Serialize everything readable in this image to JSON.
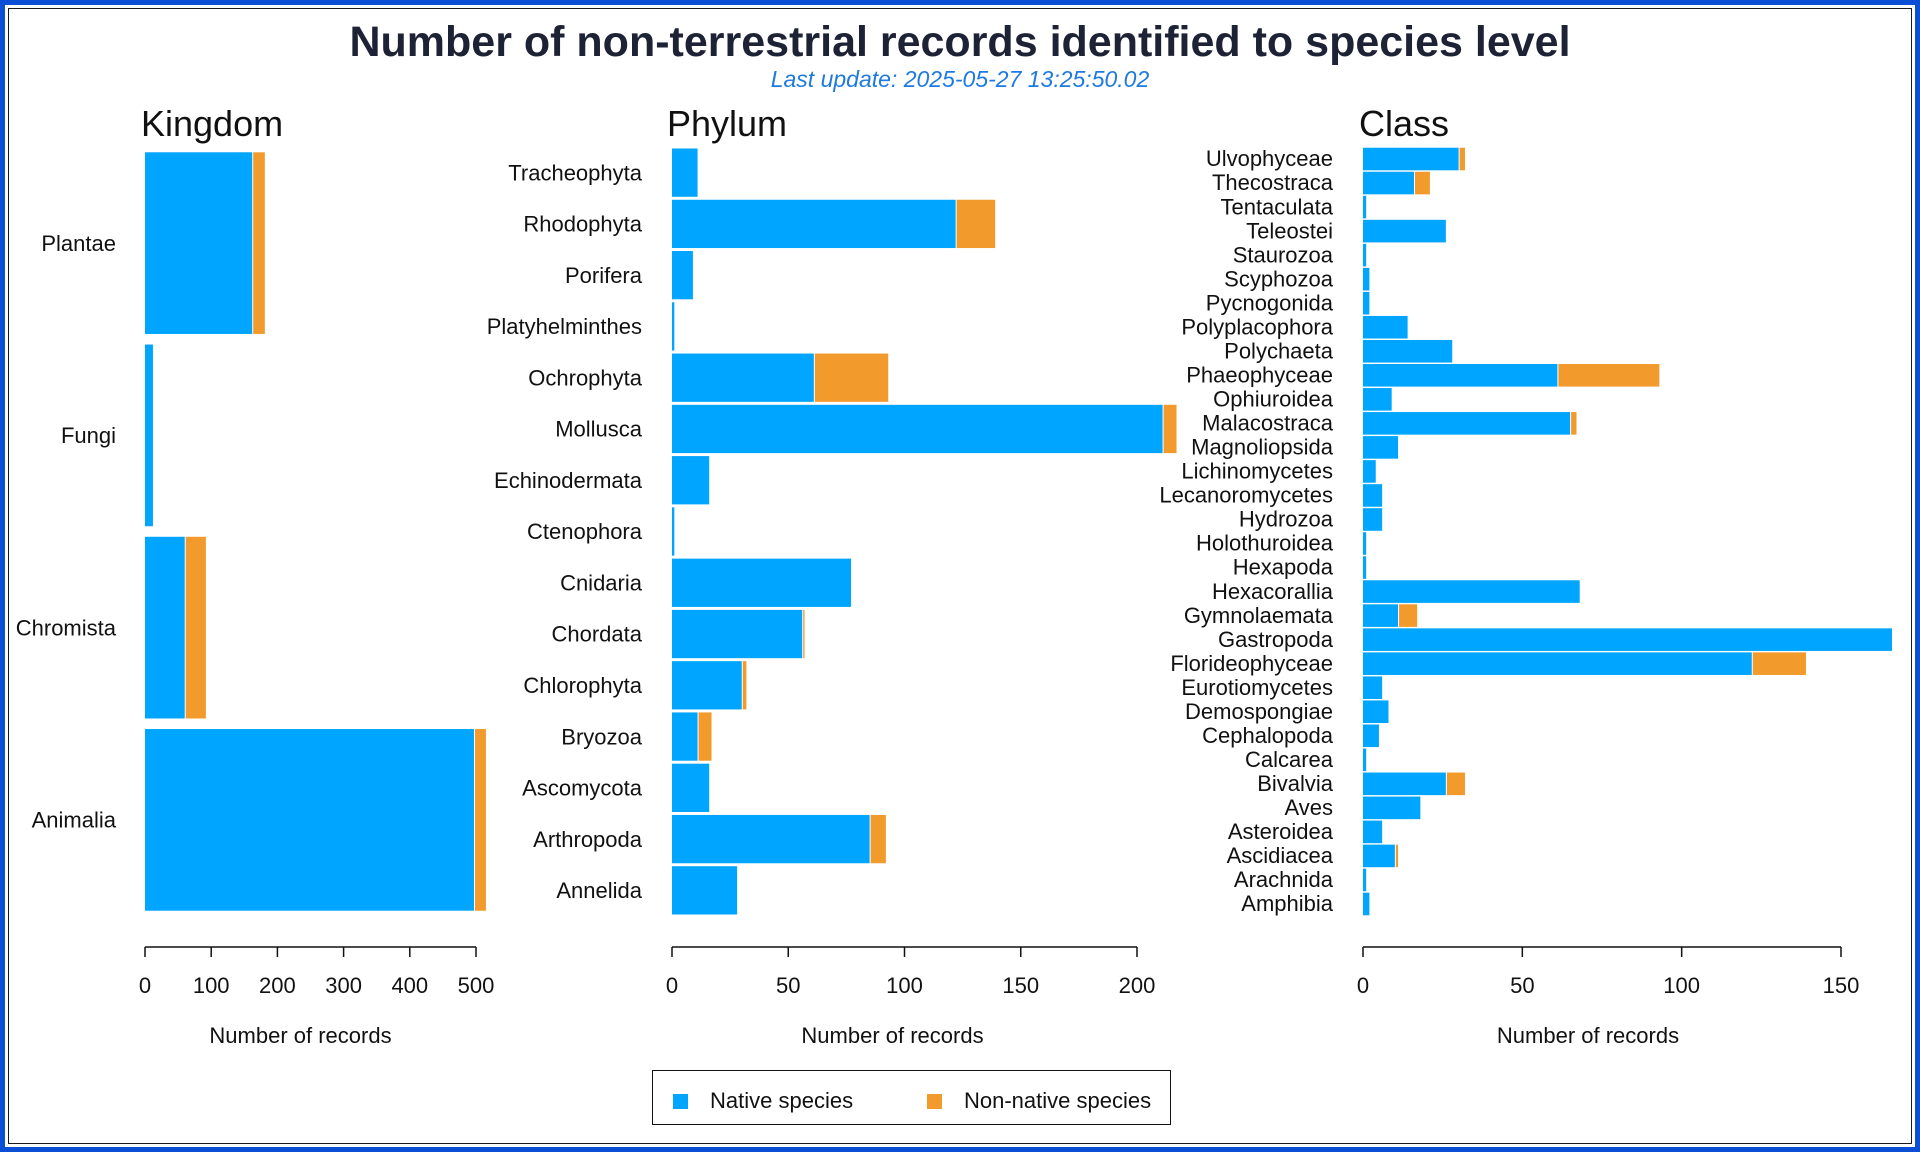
{
  "title": "Number of non-terrestrial records identified to species level",
  "subtitle": "Last update: 2025-05-27 13:25:50.02",
  "colors": {
    "native": "#00a5ff",
    "non_native": "#f39a2c",
    "frame": "#0b4fd6",
    "title": "#1d2235",
    "subtitle": "#1f7ae0"
  },
  "legend": {
    "native_label": "Native species",
    "non_native_label": "Non-native species"
  },
  "chart_data": [
    {
      "type": "bar",
      "orientation": "horizontal",
      "stacked": true,
      "title": "Kingdom",
      "xlabel": "Number of records",
      "xlim": [
        0,
        500
      ],
      "xticks": [
        0,
        100,
        200,
        300,
        400,
        500
      ],
      "categories": [
        "Plantae",
        "Fungi",
        "Chromista",
        "Animalia"
      ],
      "series": [
        {
          "name": "Native species",
          "values": [
            162,
            12,
            60,
            497
          ]
        },
        {
          "name": "Non-native species",
          "values": [
            19,
            0,
            32,
            18
          ]
        }
      ]
    },
    {
      "type": "bar",
      "orientation": "horizontal",
      "stacked": true,
      "title": "Phylum",
      "xlabel": "Number of records",
      "xlim": [
        0,
        200
      ],
      "xticks": [
        0,
        50,
        100,
        150,
        200
      ],
      "categories": [
        "Tracheophyta",
        "Rhodophyta",
        "Porifera",
        "Platyhelminthes",
        "Ochrophyta",
        "Mollusca",
        "Echinodermata",
        "Ctenophora",
        "Cnidaria",
        "Chordata",
        "Chlorophyta",
        "Bryozoa",
        "Ascomycota",
        "Arthropoda",
        "Annelida"
      ],
      "series": [
        {
          "name": "Native species",
          "values": [
            11,
            122,
            9,
            1,
            61,
            211,
            16,
            1,
            77,
            56,
            30,
            11,
            16,
            85,
            28
          ]
        },
        {
          "name": "Non-native species",
          "values": [
            0,
            17,
            0,
            0,
            32,
            6,
            0,
            0,
            0,
            1,
            2,
            6,
            0,
            7,
            0
          ]
        }
      ]
    },
    {
      "type": "bar",
      "orientation": "horizontal",
      "stacked": true,
      "title": "Class",
      "xlabel": "Number of records",
      "xlim": [
        0,
        150
      ],
      "xticks": [
        0,
        50,
        100,
        150
      ],
      "categories": [
        "Ulvophyceae",
        "Thecostraca",
        "Tentaculata",
        "Teleostei",
        "Staurozoa",
        "Scyphozoa",
        "Pycnogonida",
        "Polyplacophora",
        "Polychaeta",
        "Phaeophyceae",
        "Ophiuroidea",
        "Malacostraca",
        "Magnoliopsida",
        "Lichinomycetes",
        "Lecanoromycetes",
        "Hydrozoa",
        "Holothuroidea",
        "Hexapoda",
        "Hexacorallia",
        "Gymnolaemata",
        "Gastropoda",
        "Florideophyceae",
        "Eurotiomycetes",
        "Demospongiae",
        "Cephalopoda",
        "Calcarea",
        "Bivalvia",
        "Aves",
        "Asteroidea",
        "Ascidiacea",
        "Arachnida",
        "Amphibia"
      ],
      "series": [
        {
          "name": "Native species",
          "values": [
            30,
            16,
            1,
            26,
            1,
            2,
            2,
            14,
            28,
            61,
            9,
            65,
            11,
            4,
            6,
            6,
            1,
            1,
            68,
            11,
            166,
            122,
            6,
            8,
            5,
            1,
            26,
            18,
            6,
            10,
            1,
            2
          ]
        },
        {
          "name": "Non-native species",
          "values": [
            2,
            5,
            0,
            0,
            0,
            0,
            0,
            0,
            0,
            32,
            0,
            2,
            0,
            0,
            0,
            0,
            0,
            0,
            0,
            6,
            0,
            17,
            0,
            0,
            0,
            0,
            6,
            0,
            0,
            1,
            0,
            0
          ]
        }
      ]
    }
  ]
}
